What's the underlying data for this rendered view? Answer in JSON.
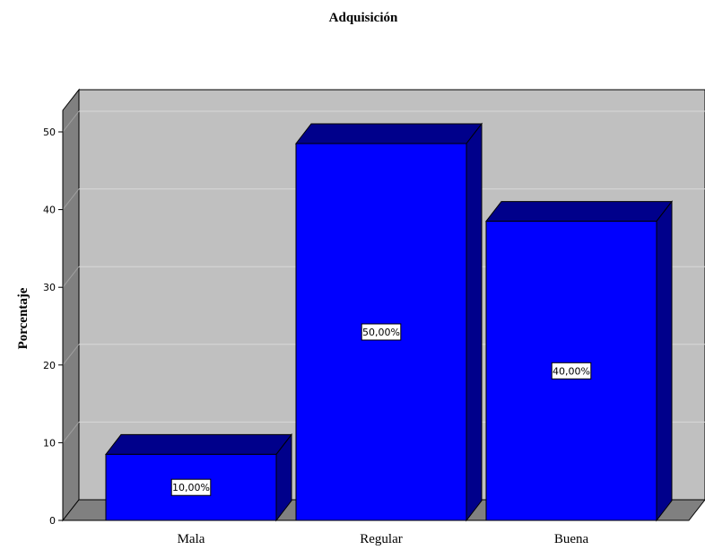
{
  "chart_data": {
    "type": "bar",
    "title": "Adquisición",
    "xlabel": "",
    "ylabel": "Porcentaje",
    "categories": [
      "Mala",
      "Regular",
      "Buena"
    ],
    "values": [
      10,
      50,
      40
    ],
    "data_labels": [
      "10,00%",
      "50,00%",
      "40,00%"
    ],
    "ylim": [
      0,
      50
    ],
    "yticks": [
      0,
      10,
      20,
      30,
      40,
      50
    ],
    "grid": true,
    "three_d": true,
    "colors": {
      "bar_front": "#0000ff",
      "bar_top": "#00008b",
      "bar_side": "#00008b",
      "wall": "#c0c0c0",
      "wall_side": "#808080",
      "floor": "#808080",
      "gridline": "#d8d8d8"
    }
  }
}
